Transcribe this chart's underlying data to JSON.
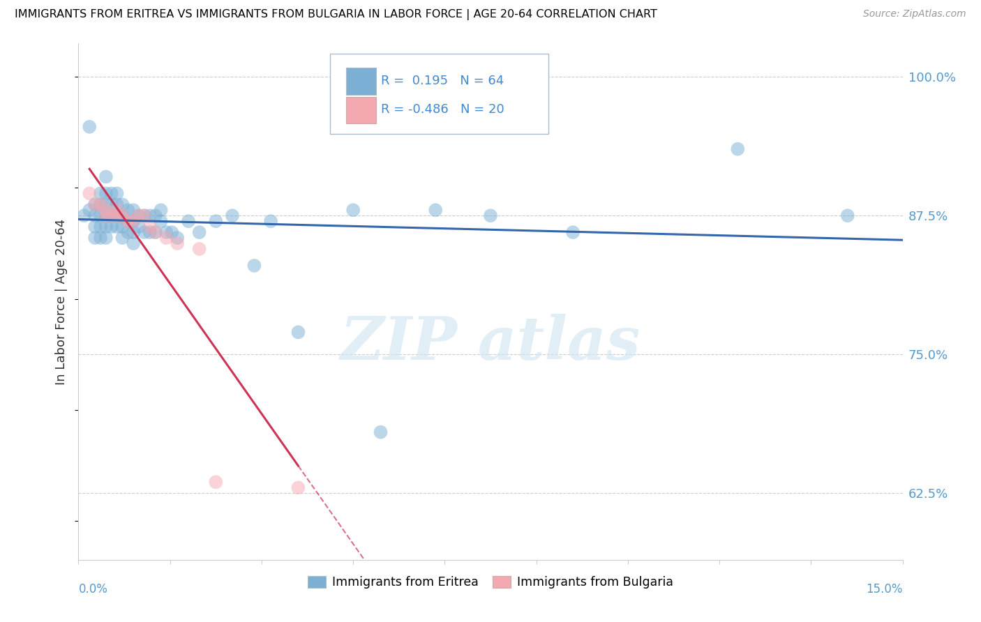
{
  "title": "IMMIGRANTS FROM ERITREA VS IMMIGRANTS FROM BULGARIA IN LABOR FORCE | AGE 20-64 CORRELATION CHART",
  "source": "Source: ZipAtlas.com",
  "ylabel": "In Labor Force | Age 20-64",
  "ylabel_tick_vals": [
    0.625,
    0.75,
    0.875,
    1.0
  ],
  "ylabel_tick_labels": [
    "62.5%",
    "75.0%",
    "87.5%",
    "100.0%"
  ],
  "xmin": 0.0,
  "xmax": 0.15,
  "ymin": 0.565,
  "ymax": 1.03,
  "legend_r1": "R =  0.195",
  "legend_n1": "N = 64",
  "legend_r2": "R = -0.486",
  "legend_n2": "N = 20",
  "color_eritrea": "#7BAFD4",
  "color_bulgaria": "#F4A8B0",
  "color_eritrea_line": "#3366AA",
  "color_bulgaria_line": "#CC3355",
  "eritrea_x": [
    0.001,
    0.002,
    0.002,
    0.003,
    0.003,
    0.003,
    0.003,
    0.004,
    0.004,
    0.004,
    0.004,
    0.004,
    0.005,
    0.005,
    0.005,
    0.005,
    0.005,
    0.005,
    0.006,
    0.006,
    0.006,
    0.006,
    0.007,
    0.007,
    0.007,
    0.007,
    0.008,
    0.008,
    0.008,
    0.008,
    0.009,
    0.009,
    0.009,
    0.01,
    0.01,
    0.01,
    0.01,
    0.011,
    0.011,
    0.012,
    0.012,
    0.013,
    0.013,
    0.014,
    0.014,
    0.015,
    0.015,
    0.016,
    0.017,
    0.018,
    0.02,
    0.022,
    0.025,
    0.028,
    0.032,
    0.035,
    0.04,
    0.05,
    0.055,
    0.065,
    0.075,
    0.09,
    0.12,
    0.14
  ],
  "eritrea_y": [
    0.875,
    0.955,
    0.88,
    0.885,
    0.875,
    0.865,
    0.855,
    0.895,
    0.885,
    0.875,
    0.865,
    0.855,
    0.91,
    0.895,
    0.885,
    0.875,
    0.865,
    0.855,
    0.895,
    0.885,
    0.875,
    0.865,
    0.895,
    0.885,
    0.875,
    0.865,
    0.885,
    0.875,
    0.865,
    0.855,
    0.88,
    0.87,
    0.86,
    0.88,
    0.87,
    0.86,
    0.85,
    0.875,
    0.865,
    0.875,
    0.86,
    0.875,
    0.86,
    0.875,
    0.86,
    0.88,
    0.87,
    0.86,
    0.86,
    0.855,
    0.87,
    0.86,
    0.87,
    0.875,
    0.83,
    0.87,
    0.77,
    0.88,
    0.68,
    0.88,
    0.875,
    0.86,
    0.935,
    0.875
  ],
  "bulgaria_x": [
    0.002,
    0.003,
    0.004,
    0.005,
    0.005,
    0.006,
    0.007,
    0.007,
    0.008,
    0.009,
    0.01,
    0.011,
    0.012,
    0.013,
    0.014,
    0.016,
    0.018,
    0.022,
    0.025,
    0.04
  ],
  "bulgaria_y": [
    0.895,
    0.885,
    0.885,
    0.88,
    0.875,
    0.875,
    0.88,
    0.875,
    0.875,
    0.87,
    0.87,
    0.875,
    0.875,
    0.865,
    0.86,
    0.855,
    0.85,
    0.845,
    0.635,
    0.63
  ]
}
